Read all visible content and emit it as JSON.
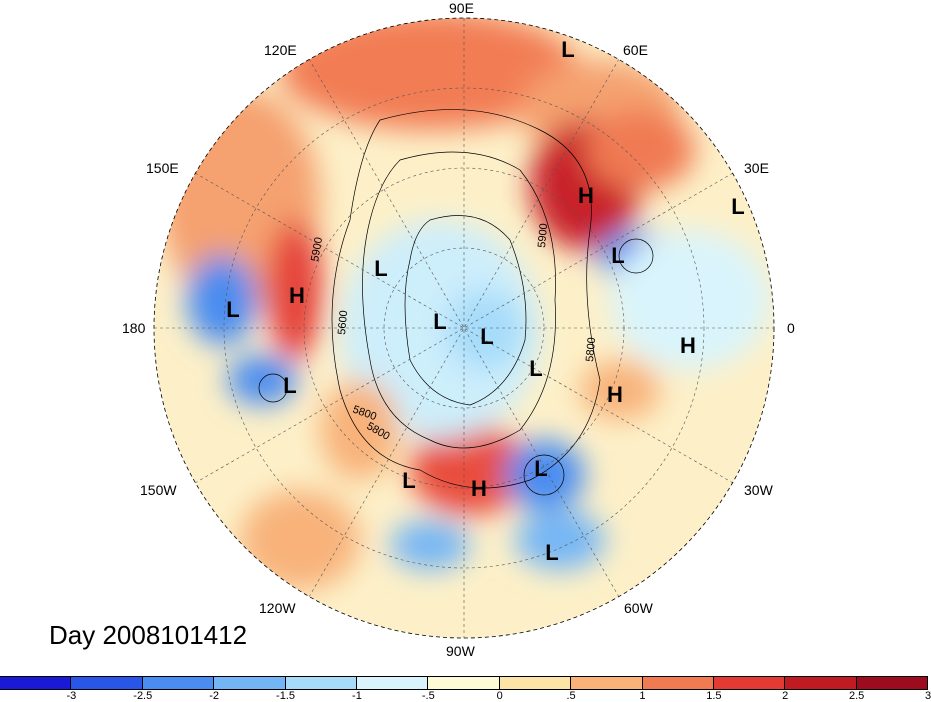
{
  "title": "Day 2008101412",
  "lon_labels": [
    "90E",
    "60E",
    "120E",
    "150E",
    "30E",
    "180",
    "0",
    "150W",
    "30W",
    "120W",
    "60W",
    "90W"
  ],
  "contour_labels": [
    "5900",
    "5600",
    "5800",
    "5800",
    "5800",
    "5900"
  ],
  "centers": [
    {
      "type": "L",
      "name": "low-60e"
    },
    {
      "type": "H",
      "name": "high-eurasia"
    },
    {
      "type": "L",
      "name": "low-30e-east"
    },
    {
      "type": "L",
      "name": "low-scandinavia"
    },
    {
      "type": "L",
      "name": "low-siberia"
    },
    {
      "type": "H",
      "name": "high-east-asia"
    },
    {
      "type": "L",
      "name": "low-pacific-west"
    },
    {
      "type": "L",
      "name": "low-pole-1"
    },
    {
      "type": "L",
      "name": "low-pole-2"
    },
    {
      "type": "L",
      "name": "low-greenland"
    },
    {
      "type": "H",
      "name": "high-africa"
    },
    {
      "type": "H",
      "name": "high-atlantic"
    },
    {
      "type": "L",
      "name": "low-aleutian"
    },
    {
      "type": "L",
      "name": "low-pacific-nw-us"
    },
    {
      "type": "H",
      "name": "high-eastern-us"
    },
    {
      "type": "L",
      "name": "low-north-atlantic"
    },
    {
      "type": "L",
      "name": "low-caribbean"
    }
  ],
  "colorbar": {
    "colors": [
      "#1919d6",
      "#2a56e8",
      "#4a8cf0",
      "#74b6f5",
      "#a6dcfa",
      "#d9f4fc",
      "#fdfbd6",
      "#fbe4a6",
      "#f8b27a",
      "#f07a52",
      "#e33b33",
      "#c01b22",
      "#9c0b1e"
    ],
    "tick_labels": [
      "-3",
      "-2.5",
      "-2",
      "-1.5",
      "-1",
      "-.5",
      "0",
      ".5",
      "1",
      "1.5",
      "2",
      "2.5",
      "3"
    ]
  }
}
